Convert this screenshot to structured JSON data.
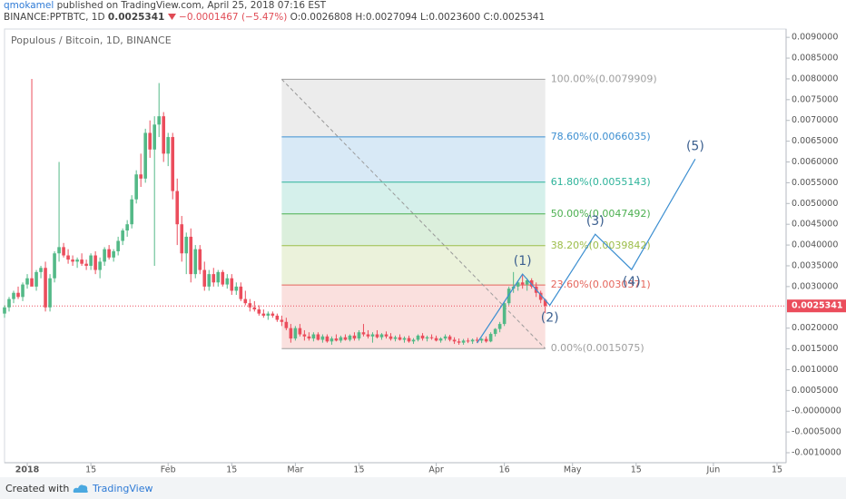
{
  "chart_data": {
    "type": "candlestick",
    "header": {
      "author": "qmokamel",
      "published": "published on TradingView.com, April 25, 2018 07:16 EST",
      "symbol": "BINANCE:PPTBTC, 1D",
      "price": "0.0025341",
      "change": "−0.0001467 (−5.47%)",
      "open": "O:0.0026808",
      "high": "H:0.0027094",
      "low": "L:0.0023600",
      "close": "C:0.0025341"
    },
    "title": "Populous / Bitcoin, 1D, BINANCE",
    "footer": {
      "created": "Created with",
      "brand": "TradingView"
    },
    "up_color": "#53b987",
    "down_color": "#eb4d5c",
    "xlim": [
      "2017-12-27",
      "2018-06-17"
    ],
    "ylim": [
      -0.00124,
      0.0092
    ],
    "xticks": [
      {
        "value": "2018-01-01",
        "label": "2018"
      },
      {
        "value": "2018-01-15",
        "label": "15"
      },
      {
        "value": "2018-02-01",
        "label": "Feb"
      },
      {
        "value": "2018-02-15",
        "label": "15"
      },
      {
        "value": "2018-03-01",
        "label": "Mar"
      },
      {
        "value": "2018-03-15",
        "label": "15"
      },
      {
        "value": "2018-04-01",
        "label": "Apr"
      },
      {
        "value": "2018-04-16",
        "label": "16"
      },
      {
        "value": "2018-05-01",
        "label": "May"
      },
      {
        "value": "2018-05-15",
        "label": "15"
      },
      {
        "value": "2018-06-01",
        "label": "Jun"
      },
      {
        "value": "2018-06-15",
        "label": "15"
      }
    ],
    "yticks": [
      {
        "value": 0.009,
        "label": "0.0090000"
      },
      {
        "value": 0.0085,
        "label": "0.0085000"
      },
      {
        "value": 0.008,
        "label": "0.0080000"
      },
      {
        "value": 0.0075,
        "label": "0.0075000"
      },
      {
        "value": 0.007,
        "label": "0.0070000"
      },
      {
        "value": 0.0065,
        "label": "0.0065000"
      },
      {
        "value": 0.006,
        "label": "0.0060000"
      },
      {
        "value": 0.0055,
        "label": "0.0055000"
      },
      {
        "value": 0.005,
        "label": "0.0050000"
      },
      {
        "value": 0.0045,
        "label": "0.0045000"
      },
      {
        "value": 0.004,
        "label": "0.0040000"
      },
      {
        "value": 0.0035,
        "label": "0.0035000"
      },
      {
        "value": 0.003,
        "label": "0.0030000"
      },
      {
        "value": 0.002,
        "label": "0.0020000"
      },
      {
        "value": 0.0015,
        "label": "0.0015000"
      },
      {
        "value": 0.001,
        "label": "0.0010000"
      },
      {
        "value": 0.0005,
        "label": "0.0005000"
      },
      {
        "value": 0,
        "label": "-0.0000000"
      },
      {
        "value": -0.0005,
        "label": "-0.0005000"
      },
      {
        "value": -0.001,
        "label": "-0.0010000"
      }
    ],
    "grid": false,
    "price_line": 0.0025341,
    "price_color": "#eb4d5c",
    "fib": {
      "start": "2018-02-26",
      "end": "2018-04-25",
      "levels": [
        {
          "value": 0.0079909,
          "label": "100.00%(0.0079909)",
          "color": "#9e9e9e"
        },
        {
          "value": 0.0066035,
          "label": "78.60%(0.0066035)",
          "color": "#3d8fd1"
        },
        {
          "value": 0.0055143,
          "label": "61.80%(0.0055143)",
          "color": "#2db39a"
        },
        {
          "value": 0.0047492,
          "label": "50.00%(0.0047492)",
          "color": "#4caf50"
        },
        {
          "value": 0.0039842,
          "label": "38.20%(0.0039842)",
          "color": "#9cbd49"
        },
        {
          "value": 0.0030371,
          "label": "23.60%(0.0030371)",
          "color": "#e5655b"
        },
        {
          "value": 0.0015075,
          "label": "0.00%(0.0015075)",
          "color": "#9e9e9e"
        }
      ]
    },
    "elliott_wave": {
      "color": "#3d8fd1",
      "points": [
        {
          "date": "2018-04-10",
          "value": 0.00164
        },
        {
          "date": "2018-04-20",
          "value": 0.0033,
          "label": "(1)"
        },
        {
          "date": "2018-04-26",
          "value": 0.00255,
          "label": "(2)"
        },
        {
          "date": "2018-05-06",
          "value": 0.00426,
          "label": "(3)"
        },
        {
          "date": "2018-05-14",
          "value": 0.00341,
          "label": "(4)"
        },
        {
          "date": "2018-05-28",
          "value": 0.00607,
          "label": "(5)"
        }
      ]
    },
    "candles": [
      [
        "2017-12-27",
        0.00235,
        0.00255,
        0.00225,
        0.0025
      ],
      [
        "2017-12-28",
        0.0025,
        0.00275,
        0.0024,
        0.0027
      ],
      [
        "2017-12-29",
        0.0027,
        0.0029,
        0.0026,
        0.00285
      ],
      [
        "2017-12-30",
        0.00285,
        0.003,
        0.0027,
        0.00275
      ],
      [
        "2017-12-31",
        0.00275,
        0.0031,
        0.00265,
        0.00305
      ],
      [
        "2018-01-01",
        0.00305,
        0.0033,
        0.00295,
        0.0032
      ],
      [
        "2018-01-02",
        0.0032,
        0.008,
        0.0031,
        0.003
      ],
      [
        "2018-01-03",
        0.003,
        0.0034,
        0.0029,
        0.00335
      ],
      [
        "2018-01-04",
        0.00335,
        0.0035,
        0.0032,
        0.00345
      ],
      [
        "2018-01-05",
        0.00345,
        0.0036,
        0.0024,
        0.0025
      ],
      [
        "2018-01-06",
        0.0025,
        0.0033,
        0.0024,
        0.0032
      ],
      [
        "2018-01-07",
        0.0032,
        0.00385,
        0.0031,
        0.0038
      ],
      [
        "2018-01-08",
        0.0038,
        0.006,
        0.0036,
        0.00395
      ],
      [
        "2018-01-09",
        0.00395,
        0.00405,
        0.0037,
        0.00375
      ],
      [
        "2018-01-10",
        0.00375,
        0.0039,
        0.00355,
        0.00365
      ],
      [
        "2018-01-11",
        0.00365,
        0.00375,
        0.0035,
        0.0036
      ],
      [
        "2018-01-12",
        0.0036,
        0.0037,
        0.00345,
        0.00365
      ],
      [
        "2018-01-13",
        0.00365,
        0.0038,
        0.0035,
        0.00355
      ],
      [
        "2018-01-14",
        0.00355,
        0.00365,
        0.0034,
        0.0035
      ],
      [
        "2018-01-15",
        0.0035,
        0.0038,
        0.0034,
        0.00375
      ],
      [
        "2018-01-16",
        0.00375,
        0.00385,
        0.0033,
        0.0034
      ],
      [
        "2018-01-17",
        0.0034,
        0.0037,
        0.0032,
        0.0036
      ],
      [
        "2018-01-18",
        0.0036,
        0.00395,
        0.0035,
        0.0039
      ],
      [
        "2018-01-19",
        0.0039,
        0.004,
        0.00365,
        0.0037
      ],
      [
        "2018-01-20",
        0.0037,
        0.0039,
        0.0036,
        0.00385
      ],
      [
        "2018-01-21",
        0.00385,
        0.0042,
        0.00375,
        0.0041
      ],
      [
        "2018-01-22",
        0.0041,
        0.0044,
        0.004,
        0.00435
      ],
      [
        "2018-01-23",
        0.00435,
        0.0046,
        0.0042,
        0.0045
      ],
      [
        "2018-01-24",
        0.0045,
        0.0052,
        0.0044,
        0.0051
      ],
      [
        "2018-01-25",
        0.0051,
        0.0058,
        0.005,
        0.0057
      ],
      [
        "2018-01-26",
        0.0057,
        0.0062,
        0.0054,
        0.0056
      ],
      [
        "2018-01-27",
        0.0056,
        0.0068,
        0.0055,
        0.0067
      ],
      [
        "2018-01-28",
        0.0067,
        0.007,
        0.0061,
        0.0063
      ],
      [
        "2018-01-29",
        0.0063,
        0.0071,
        0.0035,
        0.0069
      ],
      [
        "2018-01-30",
        0.0069,
        0.0079,
        0.0066,
        0.0071
      ],
      [
        "2018-01-31",
        0.0071,
        0.0072,
        0.006,
        0.0062
      ],
      [
        "2018-02-01",
        0.0062,
        0.0067,
        0.0059,
        0.0066
      ],
      [
        "2018-02-02",
        0.0066,
        0.0067,
        0.0051,
        0.0053
      ],
      [
        "2018-02-03",
        0.0053,
        0.0056,
        0.004,
        0.0045
      ],
      [
        "2018-02-04",
        0.0045,
        0.0047,
        0.0036,
        0.0038
      ],
      [
        "2018-02-05",
        0.0038,
        0.0043,
        0.0033,
        0.0042
      ],
      [
        "2018-02-06",
        0.0042,
        0.0044,
        0.0031,
        0.0033
      ],
      [
        "2018-02-07",
        0.0033,
        0.004,
        0.0032,
        0.0039
      ],
      [
        "2018-02-08",
        0.0039,
        0.004,
        0.0033,
        0.0034
      ],
      [
        "2018-02-09",
        0.0034,
        0.0036,
        0.0029,
        0.003
      ],
      [
        "2018-02-10",
        0.003,
        0.0034,
        0.0029,
        0.0033
      ],
      [
        "2018-02-11",
        0.0033,
        0.00345,
        0.003,
        0.0031
      ],
      [
        "2018-02-12",
        0.0031,
        0.0034,
        0.003,
        0.00335
      ],
      [
        "2018-02-13",
        0.00335,
        0.0034,
        0.003,
        0.00305
      ],
      [
        "2018-02-14",
        0.00305,
        0.0033,
        0.00295,
        0.0032
      ],
      [
        "2018-02-15",
        0.0032,
        0.0033,
        0.0028,
        0.0029
      ],
      [
        "2018-02-16",
        0.0029,
        0.0031,
        0.0028,
        0.003
      ],
      [
        "2018-02-17",
        0.003,
        0.0031,
        0.00265,
        0.0027
      ],
      [
        "2018-02-18",
        0.0027,
        0.0029,
        0.00255,
        0.0026
      ],
      [
        "2018-02-19",
        0.0026,
        0.0027,
        0.0024,
        0.0025
      ],
      [
        "2018-02-20",
        0.0025,
        0.00265,
        0.0024,
        0.00245
      ],
      [
        "2018-02-21",
        0.00245,
        0.00255,
        0.0023,
        0.00235
      ],
      [
        "2018-02-22",
        0.00235,
        0.00245,
        0.00225,
        0.0023
      ],
      [
        "2018-02-23",
        0.0023,
        0.0024,
        0.0022,
        0.00235
      ],
      [
        "2018-02-24",
        0.00235,
        0.0024,
        0.00225,
        0.0023
      ],
      [
        "2018-02-25",
        0.0023,
        0.00235,
        0.00215,
        0.0022
      ],
      [
        "2018-02-26",
        0.0022,
        0.0023,
        0.00205,
        0.00215
      ],
      [
        "2018-02-27",
        0.00215,
        0.00225,
        0.00195,
        0.002
      ],
      [
        "2018-02-28",
        0.002,
        0.0021,
        0.00165,
        0.00175
      ],
      [
        "2018-03-01",
        0.00175,
        0.00205,
        0.0017,
        0.002
      ],
      [
        "2018-03-02",
        0.002,
        0.0021,
        0.0018,
        0.00185
      ],
      [
        "2018-03-03",
        0.00185,
        0.00195,
        0.0017,
        0.0018
      ],
      [
        "2018-03-04",
        0.0018,
        0.0019,
        0.0017,
        0.00175
      ],
      [
        "2018-03-05",
        0.00175,
        0.0019,
        0.00168,
        0.00185
      ],
      [
        "2018-03-06",
        0.00185,
        0.0019,
        0.0017,
        0.00172
      ],
      [
        "2018-03-07",
        0.00172,
        0.00185,
        0.00165,
        0.0018
      ],
      [
        "2018-03-08",
        0.0018,
        0.00185,
        0.00165,
        0.00168
      ],
      [
        "2018-03-09",
        0.00168,
        0.0018,
        0.0016,
        0.00175
      ],
      [
        "2018-03-10",
        0.00175,
        0.00185,
        0.00168,
        0.0017
      ],
      [
        "2018-03-11",
        0.0017,
        0.00182,
        0.00165,
        0.00178
      ],
      [
        "2018-03-12",
        0.00178,
        0.00185,
        0.0017,
        0.00172
      ],
      [
        "2018-03-13",
        0.00172,
        0.00185,
        0.00168,
        0.00182
      ],
      [
        "2018-03-14",
        0.00182,
        0.0019,
        0.0017,
        0.00175
      ],
      [
        "2018-03-15",
        0.00175,
        0.00195,
        0.0017,
        0.0019
      ],
      [
        "2018-03-16",
        0.0019,
        0.0021,
        0.0018,
        0.00185
      ],
      [
        "2018-03-17",
        0.00185,
        0.00195,
        0.00175,
        0.0018
      ],
      [
        "2018-03-18",
        0.0018,
        0.0019,
        0.00165,
        0.00185
      ],
      [
        "2018-03-19",
        0.00185,
        0.00195,
        0.00175,
        0.00178
      ],
      [
        "2018-03-20",
        0.00178,
        0.00188,
        0.00172,
        0.00185
      ],
      [
        "2018-03-21",
        0.00185,
        0.00192,
        0.00175,
        0.0018
      ],
      [
        "2018-03-22",
        0.0018,
        0.00188,
        0.0017,
        0.00174
      ],
      [
        "2018-03-23",
        0.00174,
        0.00182,
        0.00168,
        0.00178
      ],
      [
        "2018-03-24",
        0.00178,
        0.00185,
        0.0017,
        0.00172
      ],
      [
        "2018-03-25",
        0.00172,
        0.0018,
        0.00165,
        0.00176
      ],
      [
        "2018-03-26",
        0.00176,
        0.00182,
        0.00165,
        0.00168
      ],
      [
        "2018-03-27",
        0.00168,
        0.00176,
        0.00162,
        0.00172
      ],
      [
        "2018-03-28",
        0.00172,
        0.00185,
        0.00168,
        0.00182
      ],
      [
        "2018-03-29",
        0.00182,
        0.00188,
        0.0017,
        0.00175
      ],
      [
        "2018-03-30",
        0.00175,
        0.00182,
        0.00168,
        0.00178
      ],
      [
        "2018-03-31",
        0.00178,
        0.00185,
        0.00172,
        0.00176
      ],
      [
        "2018-04-01",
        0.00176,
        0.00182,
        0.00168,
        0.0017
      ],
      [
        "2018-04-02",
        0.0017,
        0.00178,
        0.00165,
        0.00175
      ],
      [
        "2018-04-03",
        0.00175,
        0.00185,
        0.0017,
        0.0018
      ],
      [
        "2018-04-04",
        0.0018,
        0.00184,
        0.00168,
        0.00172
      ],
      [
        "2018-04-05",
        0.00172,
        0.00178,
        0.00162,
        0.00168
      ],
      [
        "2018-04-06",
        0.00168,
        0.00175,
        0.0016,
        0.00165
      ],
      [
        "2018-04-07",
        0.00165,
        0.00174,
        0.0016,
        0.0017
      ],
      [
        "2018-04-08",
        0.0017,
        0.00176,
        0.00164,
        0.00168
      ],
      [
        "2018-04-09",
        0.00168,
        0.00175,
        0.00162,
        0.00172
      ],
      [
        "2018-04-10",
        0.00172,
        0.00178,
        0.00165,
        0.0017
      ],
      [
        "2018-04-11",
        0.0017,
        0.00176,
        0.00164,
        0.00174
      ],
      [
        "2018-04-12",
        0.00174,
        0.0018,
        0.00165,
        0.00168
      ],
      [
        "2018-04-13",
        0.00168,
        0.0019,
        0.00166,
        0.00186
      ],
      [
        "2018-04-14",
        0.00186,
        0.002,
        0.0018,
        0.00198
      ],
      [
        "2018-04-15",
        0.00198,
        0.00215,
        0.0019,
        0.0021
      ],
      [
        "2018-04-16",
        0.0021,
        0.00265,
        0.00205,
        0.0026
      ],
      [
        "2018-04-17",
        0.0026,
        0.003,
        0.00255,
        0.00295
      ],
      [
        "2018-04-18",
        0.00295,
        0.00335,
        0.00285,
        0.003
      ],
      [
        "2018-04-19",
        0.003,
        0.00315,
        0.0029,
        0.0031
      ],
      [
        "2018-04-20",
        0.0031,
        0.0033,
        0.00295,
        0.00305
      ],
      [
        "2018-04-21",
        0.00305,
        0.0032,
        0.0029,
        0.00315
      ],
      [
        "2018-04-22",
        0.00315,
        0.0032,
        0.00295,
        0.003
      ],
      [
        "2018-04-23",
        0.003,
        0.0031,
        0.00275,
        0.00285
      ],
      [
        "2018-04-24",
        0.00285,
        0.0029,
        0.0026,
        0.0026808
      ],
      [
        "2018-04-25",
        0.0026808,
        0.0027094,
        0.00236,
        0.0025341
      ]
    ]
  }
}
